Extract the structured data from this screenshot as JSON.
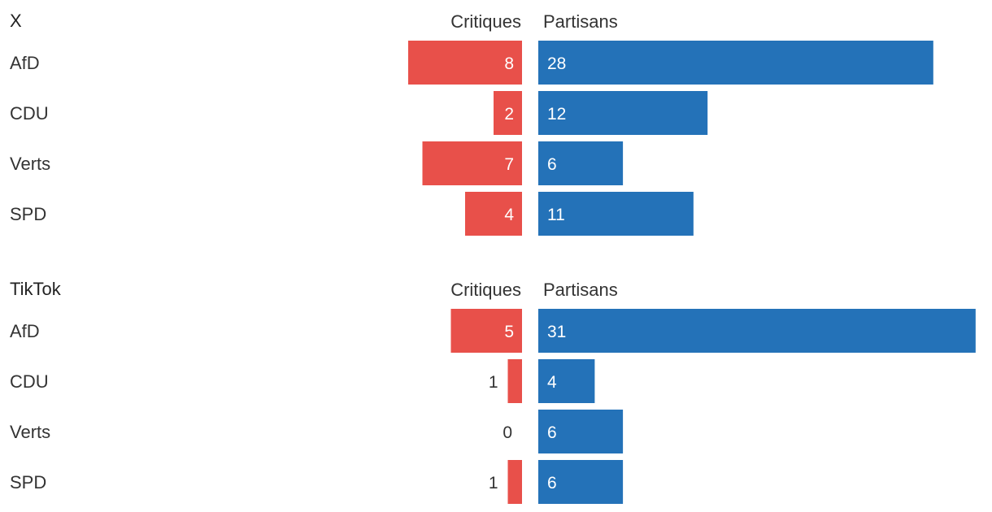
{
  "chart_data": [
    {
      "type": "bar",
      "orientation": "horizontal-diverging",
      "title": "X",
      "categories": [
        "AfD",
        "CDU",
        "Verts",
        "SPD"
      ],
      "series": [
        {
          "name": "Critiques",
          "values": [
            8,
            2,
            7,
            4
          ]
        },
        {
          "name": "Partisans",
          "values": [
            28,
            12,
            6,
            11
          ]
        }
      ],
      "colors": {
        "Critiques": "#e8504a",
        "Partisans": "#2472b8"
      }
    },
    {
      "type": "bar",
      "orientation": "horizontal-diverging",
      "title": "TikTok",
      "categories": [
        "AfD",
        "CDU",
        "Verts",
        "SPD"
      ],
      "series": [
        {
          "name": "Critiques",
          "values": [
            5,
            1,
            0,
            1
          ]
        },
        {
          "name": "Partisans",
          "values": [
            31,
            4,
            6,
            6
          ]
        }
      ],
      "colors": {
        "Critiques": "#e8504a",
        "Partisans": "#2472b8"
      }
    }
  ]
}
